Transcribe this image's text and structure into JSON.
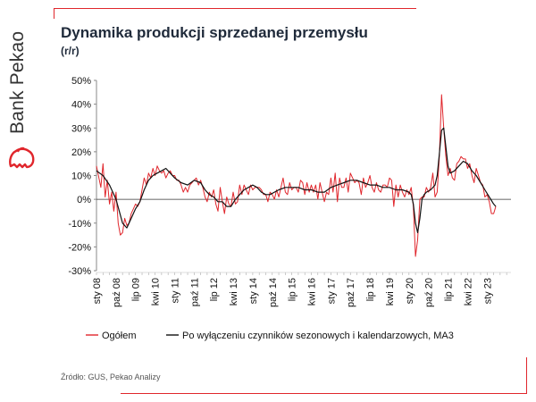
{
  "brand": {
    "name": "Bank Pekao",
    "accent": "#e0262c"
  },
  "title": "Dynamika produkcji sprzedanej przemysłu",
  "subtitle": "(r/r)",
  "source": "Źródło: GUS, Pekao Analizy",
  "chart_data": {
    "type": "line",
    "ylim": [
      -30,
      50
    ],
    "y_ticks": [
      "-30%",
      "-20%",
      "-10%",
      "0%",
      "10%",
      "20%",
      "30%",
      "40%",
      "50%"
    ],
    "x_range": [
      "2008-01",
      "2023-12"
    ],
    "x_ticks": [
      "sty 08",
      "paź 08",
      "lip 09",
      "kwi 10",
      "sty 11",
      "paź 11",
      "lip 12",
      "kwi 13",
      "sty 14",
      "paź 14",
      "lip 15",
      "kwi 16",
      "sty 17",
      "paź 17",
      "lip 18",
      "kwi 19",
      "sty 20",
      "paź 20",
      "lip 21",
      "kwi 22",
      "sty 23"
    ],
    "legend_position": "bottom",
    "series": [
      {
        "name": "Ogółem",
        "color": "#e0262c",
        "points": [
          [
            "2008-01",
            14
          ],
          [
            "2008-03",
            5
          ],
          [
            "2008-04",
            15
          ],
          [
            "2008-05",
            1
          ],
          [
            "2008-06",
            8
          ],
          [
            "2008-07",
            -2
          ],
          [
            "2008-08",
            3
          ],
          [
            "2008-09",
            -5
          ],
          [
            "2008-10",
            3
          ],
          [
            "2008-11",
            -10
          ],
          [
            "2008-12",
            -15
          ],
          [
            "2009-01",
            -14
          ],
          [
            "2009-02",
            -8
          ],
          [
            "2009-03",
            -11
          ],
          [
            "2009-04",
            -10
          ],
          [
            "2009-05",
            -6
          ],
          [
            "2009-06",
            -4
          ],
          [
            "2009-07",
            -2
          ],
          [
            "2009-08",
            -3
          ],
          [
            "2009-09",
            -1
          ],
          [
            "2009-10",
            4
          ],
          [
            "2009-11",
            9
          ],
          [
            "2009-12",
            6
          ],
          [
            "2010-01",
            11
          ],
          [
            "2010-02",
            9
          ],
          [
            "2010-03",
            13
          ],
          [
            "2010-04",
            10
          ],
          [
            "2010-05",
            14
          ],
          [
            "2010-06",
            12
          ],
          [
            "2010-07",
            11
          ],
          [
            "2010-08",
            12
          ],
          [
            "2010-09",
            9
          ],
          [
            "2010-10",
            11
          ],
          [
            "2010-11",
            12
          ],
          [
            "2010-12",
            10
          ],
          [
            "2011-01",
            10
          ],
          [
            "2011-02",
            8
          ],
          [
            "2011-03",
            8
          ],
          [
            "2011-04",
            6
          ],
          [
            "2011-05",
            3
          ],
          [
            "2011-06",
            5
          ],
          [
            "2011-07",
            3
          ],
          [
            "2011-08",
            6
          ],
          [
            "2011-09",
            7
          ],
          [
            "2011-10",
            8
          ],
          [
            "2011-11",
            9
          ],
          [
            "2011-12",
            6
          ],
          [
            "2012-01",
            8
          ],
          [
            "2012-02",
            5
          ],
          [
            "2012-03",
            1
          ],
          [
            "2012-04",
            -1
          ],
          [
            "2012-05",
            3
          ],
          [
            "2012-06",
            1
          ],
          [
            "2012-07",
            4
          ],
          [
            "2012-08",
            -2
          ],
          [
            "2012-09",
            -5
          ],
          [
            "2012-10",
            5
          ],
          [
            "2012-11",
            -1
          ],
          [
            "2012-12",
            -6
          ],
          [
            "2013-01",
            1
          ],
          [
            "2013-02",
            -2
          ],
          [
            "2013-03",
            -3
          ],
          [
            "2013-04",
            3
          ],
          [
            "2013-05",
            -2
          ],
          [
            "2013-06",
            -1
          ],
          [
            "2013-07",
            6
          ],
          [
            "2013-08",
            2
          ],
          [
            "2013-09",
            6
          ],
          [
            "2013-10",
            4
          ],
          [
            "2013-11",
            2
          ],
          [
            "2013-12",
            6
          ],
          [
            "2014-01",
            4
          ],
          [
            "2014-02",
            5
          ],
          [
            "2014-03",
            5
          ],
          [
            "2014-04",
            5
          ],
          [
            "2014-05",
            4
          ],
          [
            "2014-06",
            2
          ],
          [
            "2014-07",
            2
          ],
          [
            "2014-08",
            -1
          ],
          [
            "2014-09",
            3
          ],
          [
            "2014-10",
            2
          ],
          [
            "2014-11",
            0
          ],
          [
            "2014-12",
            4
          ],
          [
            "2015-01",
            1
          ],
          [
            "2015-02",
            5
          ],
          [
            "2015-03",
            9
          ],
          [
            "2015-04",
            3
          ],
          [
            "2015-05",
            2
          ],
          [
            "2015-06",
            7
          ],
          [
            "2015-07",
            4
          ],
          [
            "2015-08",
            5
          ],
          [
            "2015-09",
            5
          ],
          [
            "2015-10",
            3
          ],
          [
            "2015-11",
            8
          ],
          [
            "2015-12",
            7
          ],
          [
            "2016-01",
            2
          ],
          [
            "2016-02",
            7
          ],
          [
            "2016-03",
            3
          ],
          [
            "2016-04",
            6
          ],
          [
            "2016-05",
            3
          ],
          [
            "2016-06",
            6
          ],
          [
            "2016-07",
            0
          ],
          [
            "2016-08",
            7
          ],
          [
            "2016-09",
            3
          ],
          [
            "2016-10",
            -1
          ],
          [
            "2016-11",
            3
          ],
          [
            "2016-12",
            2
          ],
          [
            "2017-01",
            9
          ],
          [
            "2017-02",
            3
          ],
          [
            "2017-03",
            11
          ],
          [
            "2017-04",
            -1
          ],
          [
            "2017-05",
            9
          ],
          [
            "2017-06",
            5
          ],
          [
            "2017-07",
            5
          ],
          [
            "2017-08",
            9
          ],
          [
            "2017-09",
            3
          ],
          [
            "2017-10",
            11
          ],
          [
            "2017-11",
            9
          ],
          [
            "2017-12",
            7
          ],
          [
            "2018-01",
            8
          ],
          [
            "2018-02",
            7
          ],
          [
            "2018-03",
            2
          ],
          [
            "2018-04",
            9
          ],
          [
            "2018-05",
            5
          ],
          [
            "2018-06",
            7
          ],
          [
            "2018-07",
            10
          ],
          [
            "2018-08",
            5
          ],
          [
            "2018-09",
            3
          ],
          [
            "2018-10",
            7
          ],
          [
            "2018-11",
            4
          ],
          [
            "2018-12",
            3
          ],
          [
            "2019-01",
            6
          ],
          [
            "2019-02",
            6
          ],
          [
            "2019-03",
            5
          ],
          [
            "2019-04",
            9
          ],
          [
            "2019-05",
            8
          ],
          [
            "2019-06",
            -3
          ],
          [
            "2019-07",
            6
          ],
          [
            "2019-08",
            1
          ],
          [
            "2019-09",
            6
          ],
          [
            "2019-10",
            3
          ],
          [
            "2019-11",
            1
          ],
          [
            "2019-12",
            4
          ],
          [
            "2020-01",
            2
          ],
          [
            "2020-02",
            5
          ],
          [
            "2020-03",
            -3
          ],
          [
            "2020-04",
            -24
          ],
          [
            "2020-05",
            -17
          ],
          [
            "2020-06",
            0
          ],
          [
            "2020-07",
            1
          ],
          [
            "2020-08",
            1
          ],
          [
            "2020-09",
            5
          ],
          [
            "2020-10",
            3
          ],
          [
            "2020-11",
            5
          ],
          [
            "2020-12",
            11
          ],
          [
            "2021-01",
            1
          ],
          [
            "2021-02",
            3
          ],
          [
            "2021-03",
            18
          ],
          [
            "2021-04",
            44
          ],
          [
            "2021-05",
            30
          ],
          [
            "2021-06",
            18
          ],
          [
            "2021-07",
            10
          ],
          [
            "2021-08",
            13
          ],
          [
            "2021-09",
            9
          ],
          [
            "2021-10",
            8
          ],
          [
            "2021-11",
            15
          ],
          [
            "2021-12",
            16
          ],
          [
            "2022-01",
            18
          ],
          [
            "2022-02",
            17
          ],
          [
            "2022-03",
            17
          ],
          [
            "2022-04",
            13
          ],
          [
            "2022-05",
            15
          ],
          [
            "2022-06",
            10
          ],
          [
            "2022-07",
            7
          ],
          [
            "2022-08",
            13
          ],
          [
            "2022-09",
            10
          ],
          [
            "2022-10",
            7
          ],
          [
            "2022-11",
            6
          ],
          [
            "2022-12",
            1
          ],
          [
            "2023-01",
            2
          ],
          [
            "2023-02",
            -1
          ],
          [
            "2023-03",
            -6
          ],
          [
            "2023-04",
            -6
          ],
          [
            "2023-05",
            -3
          ]
        ]
      },
      {
        "name": "Po wyłączeniu czynników sezonowych i kalendarzowych, MA3",
        "color": "#111111",
        "points": [
          [
            "2008-01",
            12
          ],
          [
            "2008-04",
            10
          ],
          [
            "2008-07",
            6
          ],
          [
            "2008-10",
            0
          ],
          [
            "2009-01",
            -10
          ],
          [
            "2009-03",
            -12
          ],
          [
            "2009-05",
            -8
          ],
          [
            "2009-07",
            -4
          ],
          [
            "2009-09",
            -1
          ],
          [
            "2009-11",
            4
          ],
          [
            "2010-01",
            8
          ],
          [
            "2010-03",
            10
          ],
          [
            "2010-05",
            11
          ],
          [
            "2010-07",
            12
          ],
          [
            "2010-09",
            13
          ],
          [
            "2010-11",
            11
          ],
          [
            "2011-01",
            9
          ],
          [
            "2011-04",
            7
          ],
          [
            "2011-07",
            6
          ],
          [
            "2011-10",
            8
          ],
          [
            "2012-01",
            7
          ],
          [
            "2012-03",
            4
          ],
          [
            "2012-05",
            2
          ],
          [
            "2012-07",
            1
          ],
          [
            "2012-09",
            -1
          ],
          [
            "2012-11",
            -1
          ],
          [
            "2013-01",
            -3
          ],
          [
            "2013-03",
            -3
          ],
          [
            "2013-05",
            0
          ],
          [
            "2013-07",
            2
          ],
          [
            "2013-09",
            4
          ],
          [
            "2013-11",
            5
          ],
          [
            "2014-01",
            6
          ],
          [
            "2014-03",
            5
          ],
          [
            "2014-05",
            3
          ],
          [
            "2014-07",
            2
          ],
          [
            "2014-09",
            2
          ],
          [
            "2014-11",
            3
          ],
          [
            "2015-01",
            4
          ],
          [
            "2015-04",
            5
          ],
          [
            "2015-07",
            5
          ],
          [
            "2015-10",
            5
          ],
          [
            "2016-01",
            4
          ],
          [
            "2016-04",
            4
          ],
          [
            "2016-07",
            3
          ],
          [
            "2016-10",
            3
          ],
          [
            "2017-01",
            5
          ],
          [
            "2017-04",
            6
          ],
          [
            "2017-07",
            7
          ],
          [
            "2017-10",
            8
          ],
          [
            "2018-01",
            8
          ],
          [
            "2018-04",
            7
          ],
          [
            "2018-07",
            6
          ],
          [
            "2018-10",
            6
          ],
          [
            "2019-01",
            5
          ],
          [
            "2019-04",
            5
          ],
          [
            "2019-07",
            4
          ],
          [
            "2019-10",
            4
          ],
          [
            "2020-01",
            3
          ],
          [
            "2020-02",
            2
          ],
          [
            "2020-03",
            -2
          ],
          [
            "2020-04",
            -10
          ],
          [
            "2020-05",
            -14
          ],
          [
            "2020-06",
            -8
          ],
          [
            "2020-07",
            0
          ],
          [
            "2020-08",
            2
          ],
          [
            "2020-09",
            3
          ],
          [
            "2020-11",
            4
          ],
          [
            "2021-01",
            6
          ],
          [
            "2021-02",
            10
          ],
          [
            "2021-03",
            19
          ],
          [
            "2021-04",
            29
          ],
          [
            "2021-05",
            30
          ],
          [
            "2021-06",
            22
          ],
          [
            "2021-07",
            14
          ],
          [
            "2021-08",
            11
          ],
          [
            "2021-10",
            12
          ],
          [
            "2021-12",
            14
          ],
          [
            "2022-02",
            16
          ],
          [
            "2022-04",
            15
          ],
          [
            "2022-06",
            12
          ],
          [
            "2022-08",
            10
          ],
          [
            "2022-10",
            7
          ],
          [
            "2022-12",
            4
          ],
          [
            "2023-02",
            1
          ],
          [
            "2023-04",
            -2
          ],
          [
            "2023-05",
            -3
          ]
        ]
      }
    ]
  }
}
